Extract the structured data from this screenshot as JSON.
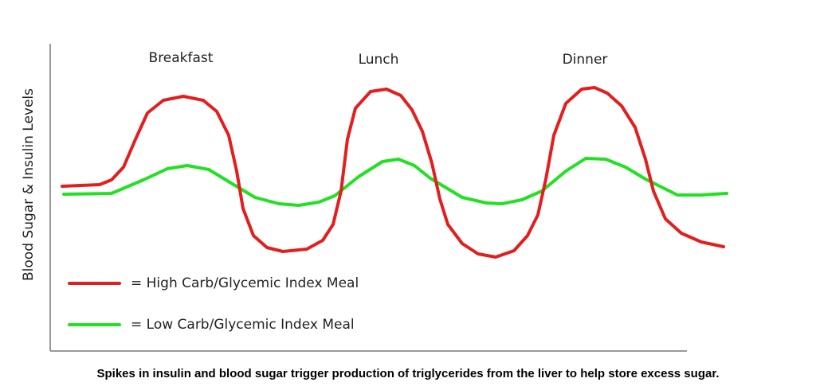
{
  "y_axis_label": "Blood Sugar & Insulin Levels",
  "meals": [
    "Breakfast",
    "Lunch",
    "Dinner"
  ],
  "legend": [
    "= High Carb/Glycemic Index Meal",
    "= Low Carb/Glycemic Index Meal"
  ],
  "caption": "Spikes in insulin and blood sugar trigger production of triglycerides from the liver to help store excess sugar."
}
